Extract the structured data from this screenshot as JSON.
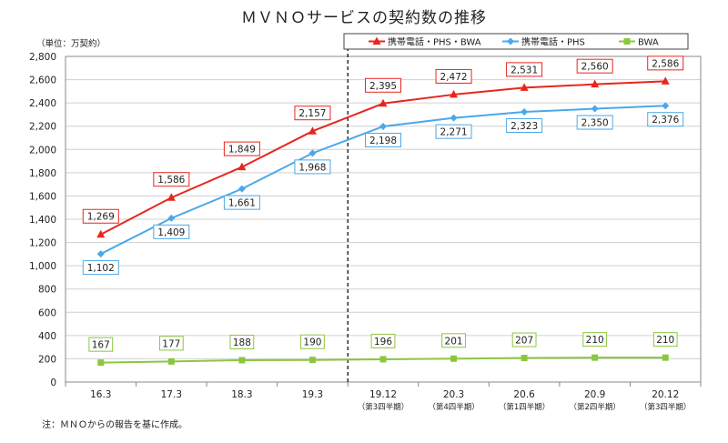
{
  "chart_data": {
    "type": "line",
    "title": "ＭＶＮＯサービスの契約数の推移",
    "unit_label": "（単位：万契約）",
    "note": "注：ＭＮＯからの報告を基に作成。",
    "categories": [
      "16.3",
      "17.3",
      "18.3",
      "19.3",
      "19.12",
      "20.3",
      "20.6",
      "20.9",
      "20.12"
    ],
    "category_sublabels": [
      "",
      "",
      "",
      "",
      "（第3四半期）",
      "（第4四半期）",
      "（第1四半期）",
      "（第2四半期）",
      "（第3四半期）"
    ],
    "ylim": [
      0,
      2800
    ],
    "yticks": [
      0,
      200,
      400,
      600,
      800,
      1000,
      1200,
      1400,
      1600,
      1800,
      2000,
      2200,
      2400,
      2600,
      2800
    ],
    "grid": true,
    "legend_position": "top-right",
    "divider_after_category": "19.3",
    "series": [
      {
        "name": "携帯電話・PHS・BWA",
        "color": "#e8261c",
        "marker": "triangle",
        "values": [
          1269,
          1586,
          1849,
          2157,
          2395,
          2472,
          2531,
          2560,
          2586
        ],
        "label_position": "above"
      },
      {
        "name": "携帯電話・PHS",
        "color": "#4aa8e8",
        "marker": "diamond",
        "values": [
          1102,
          1409,
          1661,
          1968,
          2198,
          2271,
          2323,
          2350,
          2376
        ],
        "label_position": "below"
      },
      {
        "name": "BWA",
        "color": "#8cc63f",
        "marker": "square",
        "values": [
          167,
          177,
          188,
          190,
          196,
          201,
          207,
          210,
          210
        ],
        "label_position": "above"
      }
    ]
  }
}
